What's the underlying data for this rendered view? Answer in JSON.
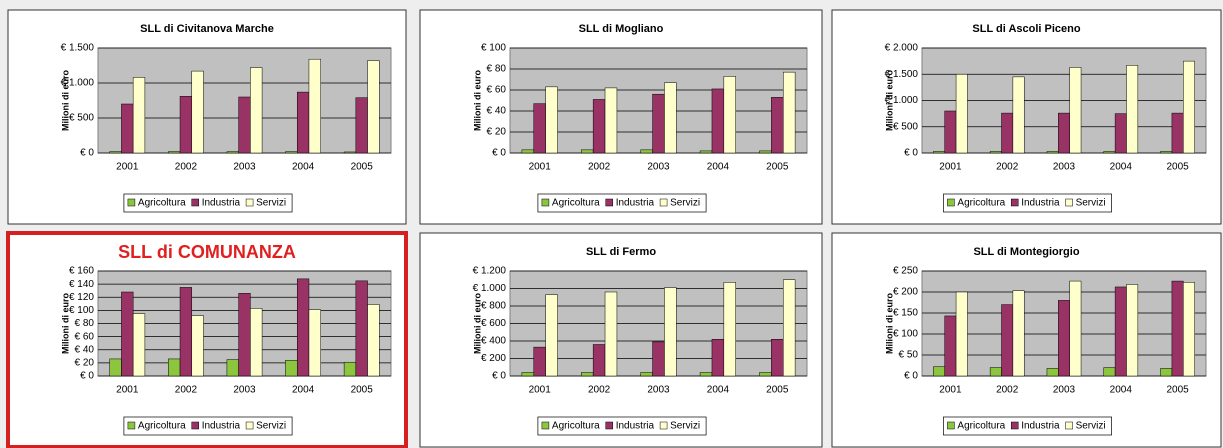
{
  "chart_data": [
    {
      "type": "bar",
      "title": "SLL di Civitanova Marche",
      "y_label": "Milioni di euro",
      "categories": [
        "2001",
        "2002",
        "2003",
        "2004",
        "2005"
      ],
      "series": [
        {
          "name": "Agricoltura",
          "color": "#8cc63f",
          "values": [
            20,
            20,
            20,
            20,
            15
          ]
        },
        {
          "name": "Industria",
          "color": "#993366",
          "values": [
            700,
            810,
            800,
            870,
            790
          ]
        },
        {
          "name": "Servizi",
          "color": "#ffffcc",
          "values": [
            1080,
            1170,
            1220,
            1340,
            1320
          ]
        }
      ],
      "ylim": [
        0,
        1500
      ],
      "yticks": [
        {
          "value": 0,
          "label": "€ 0"
        },
        {
          "value": 500,
          "label": "€ 500"
        },
        {
          "value": 1000,
          "label": "€ 1.000"
        },
        {
          "value": 1500,
          "label": "€ 1.500"
        }
      ],
      "grid": true,
      "legend": "bottom"
    },
    {
      "type": "bar",
      "title": "SLL di Mogliano",
      "y_label": "Milioni di euro",
      "categories": [
        "2001",
        "2002",
        "2003",
        "2004",
        "2005"
      ],
      "series": [
        {
          "name": "Agricoltura",
          "color": "#8cc63f",
          "values": [
            3,
            3,
            3,
            2,
            2
          ]
        },
        {
          "name": "Industria",
          "color": "#993366",
          "values": [
            47,
            51,
            56,
            61,
            53
          ]
        },
        {
          "name": "Servizi",
          "color": "#ffffcc",
          "values": [
            63,
            62,
            67,
            73,
            77
          ]
        }
      ],
      "ylim": [
        0,
        100
      ],
      "yticks": [
        {
          "value": 0,
          "label": "€ 0"
        },
        {
          "value": 20,
          "label": "€ 20"
        },
        {
          "value": 40,
          "label": "€ 40"
        },
        {
          "value": 60,
          "label": "€ 60"
        },
        {
          "value": 80,
          "label": "€ 80"
        },
        {
          "value": 100,
          "label": "€ 100"
        }
      ],
      "grid": true,
      "legend": "bottom"
    },
    {
      "type": "bar",
      "title": "SLL di Ascoli Piceno",
      "y_label": "Milioni di euro",
      "categories": [
        "2001",
        "2002",
        "2003",
        "2004",
        "2005"
      ],
      "series": [
        {
          "name": "Agricoltura",
          "color": "#8cc63f",
          "values": [
            30,
            30,
            30,
            30,
            30
          ]
        },
        {
          "name": "Industria",
          "color": "#993366",
          "values": [
            800,
            760,
            760,
            750,
            760
          ]
        },
        {
          "name": "Servizi",
          "color": "#ffffcc",
          "values": [
            1500,
            1450,
            1630,
            1670,
            1750
          ]
        }
      ],
      "ylim": [
        0,
        2000
      ],
      "yticks": [
        {
          "value": 0,
          "label": "€ 0"
        },
        {
          "value": 500,
          "label": "€ 500"
        },
        {
          "value": 1000,
          "label": "€ 1.000"
        },
        {
          "value": 1500,
          "label": "€ 1.500"
        },
        {
          "value": 2000,
          "label": "€ 2.000"
        }
      ],
      "grid": true,
      "legend": "bottom"
    },
    {
      "type": "bar",
      "title": "SLL di COMUNANZA",
      "title_color": "#e02020",
      "border_color": "#d42020",
      "y_label": "Milioni di euro",
      "categories": [
        "2001",
        "2002",
        "2003",
        "2004",
        "2005"
      ],
      "series": [
        {
          "name": "Agricoltura",
          "color": "#8cc63f",
          "values": [
            26,
            26,
            25,
            24,
            21
          ]
        },
        {
          "name": "Industria",
          "color": "#993366",
          "values": [
            128,
            135,
            126,
            148,
            145
          ]
        },
        {
          "name": "Servizi",
          "color": "#ffffcc",
          "values": [
            95,
            92,
            103,
            101,
            109
          ]
        }
      ],
      "ylim": [
        0,
        160
      ],
      "yticks": [
        {
          "value": 0,
          "label": "€ 0"
        },
        {
          "value": 20,
          "label": "€ 20"
        },
        {
          "value": 40,
          "label": "€ 40"
        },
        {
          "value": 60,
          "label": "€ 60"
        },
        {
          "value": 80,
          "label": "€ 80"
        },
        {
          "value": 100,
          "label": "€ 100"
        },
        {
          "value": 120,
          "label": "€ 120"
        },
        {
          "value": 140,
          "label": "€ 140"
        },
        {
          "value": 160,
          "label": "€ 160"
        }
      ],
      "grid": true,
      "legend": "bottom"
    },
    {
      "type": "bar",
      "title": "SLL di Fermo",
      "y_label": "Milioni di euro",
      "categories": [
        "2001",
        "2002",
        "2003",
        "2004",
        "2005"
      ],
      "series": [
        {
          "name": "Agricoltura",
          "color": "#8cc63f",
          "values": [
            40,
            40,
            40,
            40,
            40
          ]
        },
        {
          "name": "Industria",
          "color": "#993366",
          "values": [
            330,
            360,
            390,
            420,
            420
          ]
        },
        {
          "name": "Servizi",
          "color": "#ffffcc",
          "values": [
            930,
            960,
            1010,
            1070,
            1100
          ]
        }
      ],
      "ylim": [
        0,
        1200
      ],
      "yticks": [
        {
          "value": 0,
          "label": "€ 0"
        },
        {
          "value": 200,
          "label": "€ 200"
        },
        {
          "value": 400,
          "label": "€ 400"
        },
        {
          "value": 600,
          "label": "€ 600"
        },
        {
          "value": 800,
          "label": "€ 800"
        },
        {
          "value": 1000,
          "label": "€ 1.000"
        },
        {
          "value": 1200,
          "label": "€ 1.200"
        }
      ],
      "grid": true,
      "legend": "bottom"
    },
    {
      "type": "bar",
      "title": "SLL di Montegiorgio",
      "y_label": "Milioni di euro",
      "categories": [
        "2001",
        "2002",
        "2003",
        "2004",
        "2005"
      ],
      "series": [
        {
          "name": "Agricoltura",
          "color": "#8cc63f",
          "values": [
            22,
            20,
            18,
            20,
            18
          ]
        },
        {
          "name": "Industria",
          "color": "#993366",
          "values": [
            143,
            170,
            180,
            212,
            226
          ]
        },
        {
          "name": "Servizi",
          "color": "#ffffcc",
          "values": [
            200,
            203,
            226,
            218,
            223
          ]
        }
      ],
      "ylim": [
        0,
        250
      ],
      "yticks": [
        {
          "value": 0,
          "label": "€ 0"
        },
        {
          "value": 50,
          "label": "€ 50"
        },
        {
          "value": 100,
          "label": "€ 100"
        },
        {
          "value": 150,
          "label": "€ 150"
        },
        {
          "value": 200,
          "label": "€ 200"
        },
        {
          "value": 250,
          "label": "€ 250"
        }
      ],
      "grid": true,
      "legend": "bottom"
    }
  ]
}
